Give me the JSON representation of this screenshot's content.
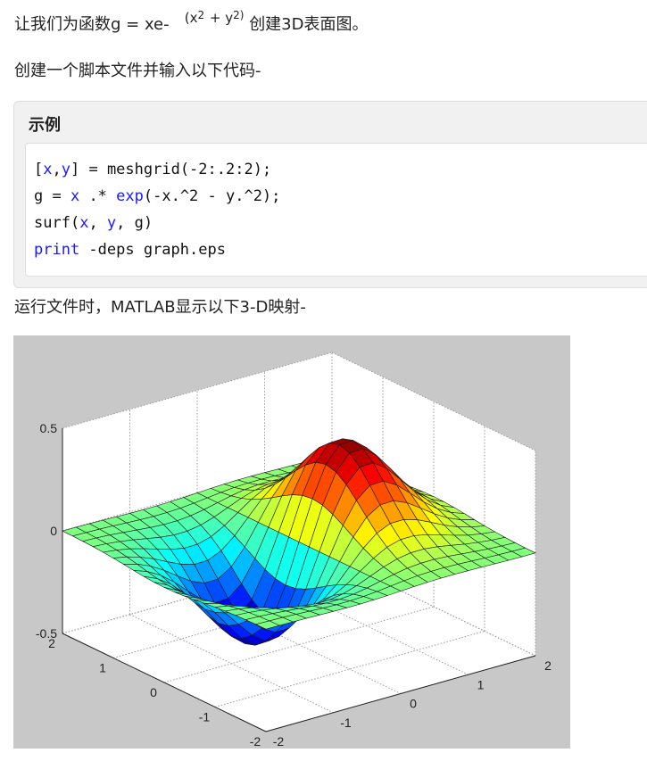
{
  "intro": {
    "prefix": "让我们为函数g = xe-",
    "exp_open": "(x",
    "exp_pow1": "2",
    "exp_mid": "+ y",
    "exp_pow2": "2)",
    "suffix": "创建3D表面图。"
  },
  "instruction": "创建一个脚本文件并输入以下代码-",
  "example": {
    "title": "示例",
    "lines": [
      [
        {
          "text": "["
        },
        {
          "text": "x",
          "color": "#1a1aff"
        },
        {
          "text": ","
        },
        {
          "text": "y",
          "color": "#1a1aff"
        },
        {
          "text": "] = meshgrid(-2:.2:2);"
        }
      ],
      [
        {
          "text": "g = "
        },
        {
          "text": "x",
          "color": "#1a1aff"
        },
        {
          "text": " .* "
        },
        {
          "text": "exp",
          "color": "#1a1aff"
        },
        {
          "text": "(-x.^2 - y.^2);"
        }
      ],
      [
        {
          "text": "surf("
        },
        {
          "text": "x",
          "color": "#1a1aff"
        },
        {
          "text": ", "
        },
        {
          "text": "y",
          "color": "#1a1aff"
        },
        {
          "text": ", g)"
        }
      ],
      [
        {
          "text": "print",
          "color": "#1a1aff"
        },
        {
          "text": " -deps graph.eps"
        }
      ]
    ]
  },
  "result_text": "运行文件时，MATLAB显示以下3-D映射-",
  "figure": {
    "zticks": [
      0.5,
      0,
      -0.5
    ],
    "xticks": [
      2,
      1,
      0,
      -1,
      -2
    ],
    "yticks": [
      -2,
      -1,
      0,
      1,
      2
    ]
  }
}
